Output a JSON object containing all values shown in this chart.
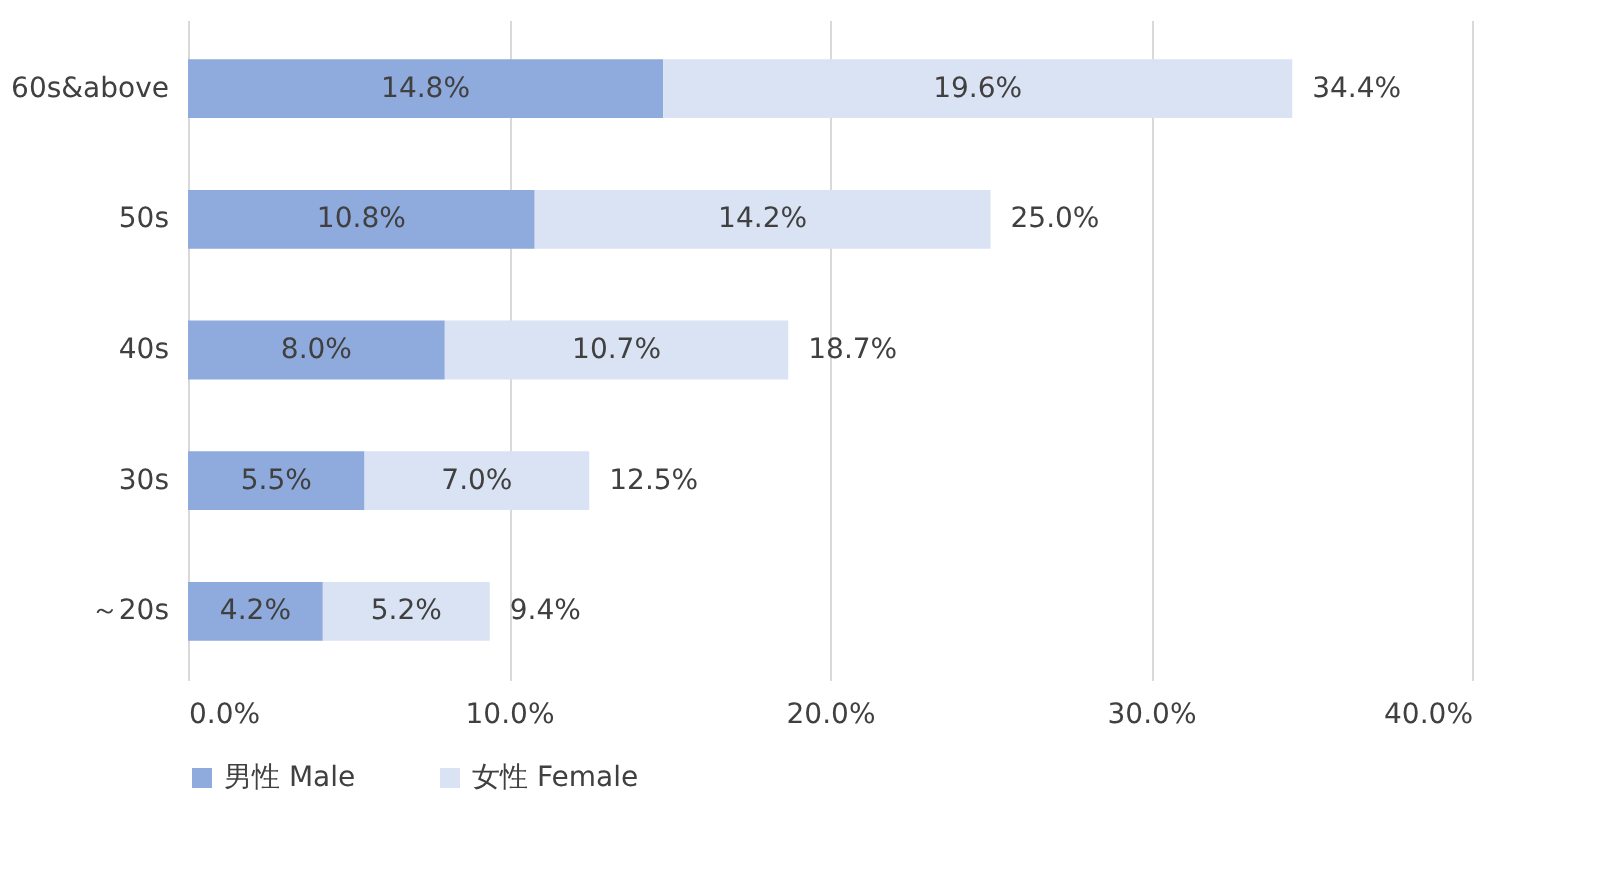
{
  "chart_data": {
    "type": "bar",
    "orientation": "horizontal",
    "stacked": true,
    "categories": [
      "60s&above",
      "50s",
      "40s",
      "30s",
      "～20s"
    ],
    "series": [
      {
        "name": "男性 Male",
        "color": "#8faadc",
        "values": [
          14.8,
          10.8,
          8.0,
          5.5,
          4.2
        ],
        "value_labels": [
          "14.8%",
          "10.8%",
          "8.0%",
          "5.5%",
          "4.2%"
        ]
      },
      {
        "name": "女性 Female",
        "color": "#dae3f3",
        "values": [
          19.6,
          14.2,
          10.7,
          7.0,
          5.2
        ],
        "value_labels": [
          "19.6%",
          "14.2%",
          "10.7%",
          "7.0%",
          "5.2%"
        ]
      }
    ],
    "totals": [
      "34.4%",
      "25.0%",
      "18.7%",
      "12.5%",
      "9.4%"
    ],
    "xlim": [
      0,
      40
    ],
    "xticks": [
      {
        "value": 0,
        "label": "0.0%"
      },
      {
        "value": 10,
        "label": "10.0%"
      },
      {
        "value": 20,
        "label": "20.0%"
      },
      {
        "value": 30,
        "label": "30.0%"
      },
      {
        "value": 40,
        "label": "40.0%"
      }
    ],
    "grid": "x",
    "legend": "bottom"
  }
}
